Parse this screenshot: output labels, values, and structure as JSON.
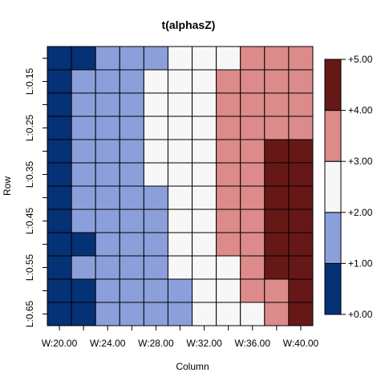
{
  "chart_data": {
    "type": "heatmap",
    "title": "t(alphasZ)",
    "xlabel": "Column",
    "ylabel": "Row",
    "x_categories": [
      "W:20.00",
      "W:22.00",
      "W:24.00",
      "W:26.00",
      "W:28.00",
      "W:30.00",
      "W:32.00",
      "W:34.00",
      "W:36.00",
      "W:38.00",
      "W:40.00"
    ],
    "x_tick_labels": [
      {
        "index": 0,
        "label": "W:20.00"
      },
      {
        "index": 2,
        "label": "W:24.00"
      },
      {
        "index": 4,
        "label": "W:28.00"
      },
      {
        "index": 6,
        "label": "W:32.00"
      },
      {
        "index": 8,
        "label": "W:36.00"
      },
      {
        "index": 10,
        "label": "W:40.00"
      }
    ],
    "y_categories": [
      "L:0.10",
      "L:0.15",
      "L:0.20",
      "L:0.25",
      "L:0.30",
      "L:0.35",
      "L:0.40",
      "L:0.45",
      "L:0.50",
      "L:0.55",
      "L:0.60",
      "L:0.65"
    ],
    "y_tick_labels": [
      {
        "index": 1,
        "label": "L:0.15"
      },
      {
        "index": 3,
        "label": "L:0.25"
      },
      {
        "index": 5,
        "label": "L:0.35"
      },
      {
        "index": 7,
        "label": "L:0.45"
      },
      {
        "index": 9,
        "label": "L:0.55"
      },
      {
        "index": 11,
        "label": "L:0.65"
      }
    ],
    "color_scale": {
      "breaks": [
        0,
        1,
        2,
        3,
        4,
        5
      ],
      "break_labels": [
        "+0.00",
        "+1.00",
        "+2.00",
        "+3.00",
        "+4.00",
        "+5.00"
      ],
      "colors": [
        "#053175",
        "#8b9fdb",
        "#f7f7f7",
        "#dd8a8a",
        "#661817"
      ]
    },
    "bin_values": [
      [
        0,
        0,
        1,
        1,
        1,
        2,
        2,
        2,
        3,
        3,
        3
      ],
      [
        0,
        1,
        1,
        1,
        2,
        2,
        2,
        3,
        3,
        3,
        3
      ],
      [
        0,
        1,
        1,
        1,
        2,
        2,
        2,
        3,
        3,
        3,
        3
      ],
      [
        0,
        1,
        1,
        1,
        2,
        2,
        2,
        3,
        3,
        3,
        3
      ],
      [
        0,
        1,
        1,
        1,
        2,
        2,
        2,
        3,
        3,
        4,
        4
      ],
      [
        0,
        1,
        1,
        1,
        2,
        2,
        2,
        3,
        3,
        4,
        4
      ],
      [
        0,
        1,
        1,
        1,
        1,
        2,
        2,
        3,
        3,
        4,
        4
      ],
      [
        0,
        1,
        1,
        1,
        1,
        2,
        2,
        3,
        3,
        4,
        4
      ],
      [
        0,
        0,
        1,
        1,
        1,
        2,
        2,
        3,
        3,
        4,
        4
      ],
      [
        0,
        1,
        1,
        1,
        1,
        2,
        2,
        2,
        3,
        4,
        4
      ],
      [
        0,
        0,
        1,
        1,
        1,
        1,
        2,
        2,
        3,
        3,
        4
      ],
      [
        0,
        0,
        1,
        1,
        1,
        1,
        2,
        2,
        2,
        3,
        4
      ]
    ]
  }
}
